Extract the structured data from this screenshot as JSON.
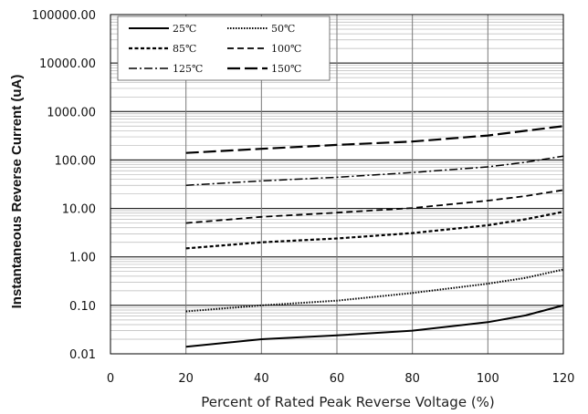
{
  "chart_data": {
    "type": "line",
    "title": "",
    "xlabel": "Percent of  Rated Peak Reverse Voltage (%)",
    "ylabel": "Instantaneous Reverse Current (uA)",
    "xlim": [
      0,
      120
    ],
    "ylim": [
      0.01,
      100000
    ],
    "y_scale": "log",
    "x_ticks": [
      "0",
      "20",
      "40",
      "60",
      "80",
      "100",
      "120"
    ],
    "y_ticks": [
      "0.01",
      "0.10",
      "1.00",
      "10.00",
      "100.00",
      "1000.00",
      "10000.00",
      "100000.00"
    ],
    "grid": true,
    "legend_position": "top-left",
    "x": [
      20,
      40,
      60,
      80,
      100,
      110,
      120
    ],
    "series": [
      {
        "name": "25℃",
        "style": "solid",
        "values": [
          0.014,
          0.02,
          0.024,
          0.03,
          0.045,
          0.062,
          0.1
        ]
      },
      {
        "name": "50℃",
        "style": "dotted",
        "values": [
          0.075,
          0.1,
          0.125,
          0.18,
          0.28,
          0.37,
          0.55
        ]
      },
      {
        "name": "85℃",
        "style": "short-dash",
        "values": [
          1.5,
          2.0,
          2.4,
          3.1,
          4.5,
          6.0,
          8.5
        ]
      },
      {
        "name": "100℃",
        "style": "dash",
        "values": [
          5.0,
          6.7,
          8.2,
          10.2,
          14.5,
          18.0,
          24.0
        ]
      },
      {
        "name": "125℃",
        "style": "dash-dot",
        "values": [
          30,
          37,
          44,
          55,
          72,
          90,
          120
        ]
      },
      {
        "name": "150℃",
        "style": "long-dash",
        "values": [
          140,
          170,
          205,
          240,
          320,
          400,
          500
        ]
      }
    ]
  }
}
